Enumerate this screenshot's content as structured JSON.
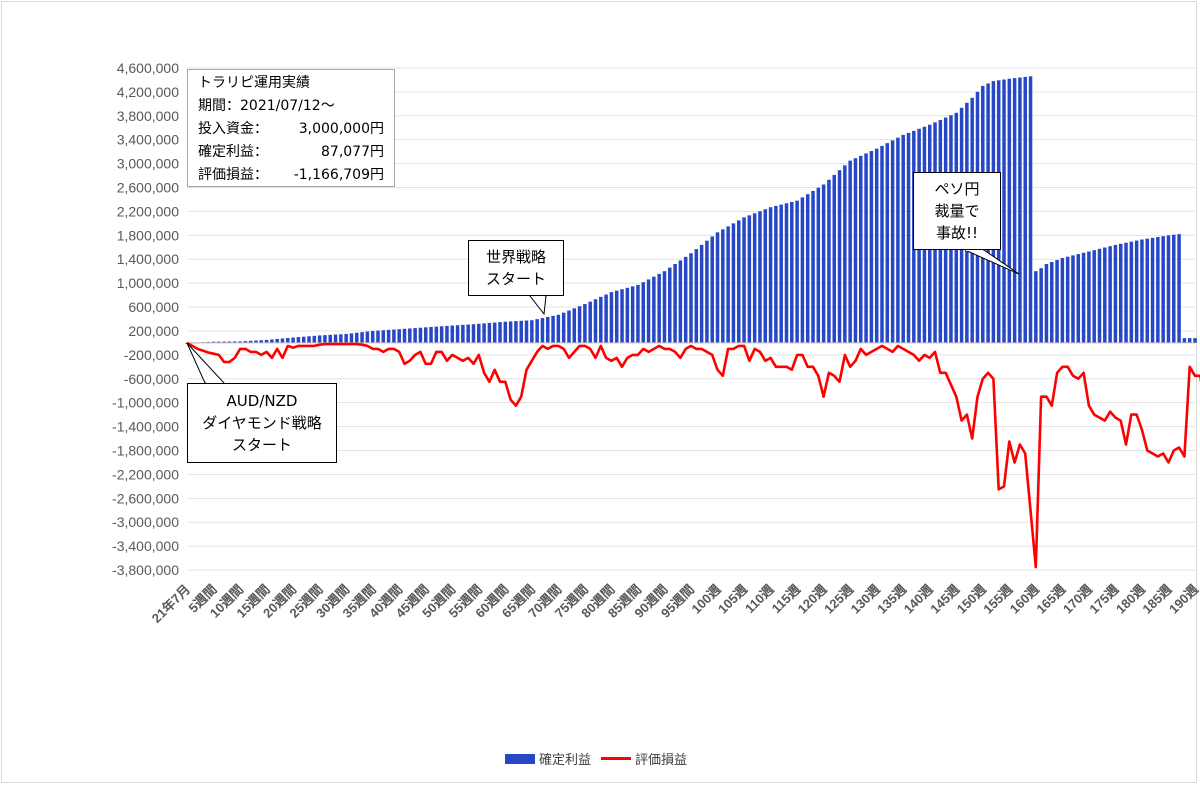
{
  "chart_data": {
    "type": "bar+line",
    "yticks": [
      "4,600,000",
      "4,200,000",
      "3,800,000",
      "3,400,000",
      "3,000,000",
      "2,600,000",
      "2,200,000",
      "1,800,000",
      "1,400,000",
      "1,000,000",
      "600,000",
      "200,000",
      "-200,000",
      "-600,000",
      "-1,000,000",
      "-1,400,000",
      "-1,800,000",
      "-2,200,000",
      "-2,600,000",
      "-3,000,000",
      "-3,400,000",
      "-3,800,000"
    ],
    "ylim": [
      -4000000,
      4800000
    ],
    "xticks": [
      "21年7月",
      "5週間",
      "10週間",
      "15週間",
      "20週間",
      "25週間",
      "30週間",
      "35週間",
      "40週間",
      "45週間",
      "50週間",
      "55週間",
      "60週間",
      "65週間",
      "70週間",
      "75週間",
      "80週間",
      "85週間",
      "90週間",
      "95週間",
      "100週",
      "105週",
      "110週",
      "115週",
      "120週",
      "125週",
      "130週",
      "135週",
      "140週",
      "145週",
      "150週",
      "155週",
      "160週",
      "165週",
      "170週",
      "175週",
      "180週",
      "185週",
      "190週"
    ],
    "num_weeks": 191,
    "series": [
      {
        "name": "確定利益",
        "type": "bar",
        "color": "#2747c6",
        "keypoints": [
          [
            0,
            0
          ],
          [
            5,
            20000
          ],
          [
            10,
            25000
          ],
          [
            15,
            50000
          ],
          [
            20,
            90000
          ],
          [
            25,
            125000
          ],
          [
            30,
            150000
          ],
          [
            35,
            200000
          ],
          [
            40,
            230000
          ],
          [
            45,
            260000
          ],
          [
            50,
            290000
          ],
          [
            55,
            320000
          ],
          [
            60,
            355000
          ],
          [
            65,
            380000
          ],
          [
            70,
            470000
          ],
          [
            75,
            650000
          ],
          [
            80,
            850000
          ],
          [
            85,
            970000
          ],
          [
            90,
            1200000
          ],
          [
            95,
            1500000
          ],
          [
            100,
            1850000
          ],
          [
            105,
            2100000
          ],
          [
            110,
            2270000
          ],
          [
            115,
            2380000
          ],
          [
            120,
            2650000
          ],
          [
            125,
            3050000
          ],
          [
            130,
            3250000
          ],
          [
            135,
            3480000
          ],
          [
            140,
            3650000
          ],
          [
            145,
            3850000
          ],
          [
            148,
            4100000
          ],
          [
            150,
            4300000
          ],
          [
            152,
            4380000
          ],
          [
            155,
            4420000
          ],
          [
            158,
            4450000
          ],
          [
            159,
            4460000
          ],
          [
            160,
            1200000
          ],
          [
            161,
            1250000
          ],
          [
            162,
            1320000
          ],
          [
            165,
            1420000
          ],
          [
            170,
            1530000
          ],
          [
            175,
            1640000
          ],
          [
            180,
            1730000
          ],
          [
            185,
            1800000
          ],
          [
            187,
            1820000
          ],
          [
            188,
            80000
          ],
          [
            190,
            80000
          ]
        ]
      },
      {
        "name": "評価損益",
        "type": "line",
        "color": "#ff0000",
        "values": [
          0,
          -50,
          -100,
          -130,
          -160,
          -180,
          -200,
          -320,
          -320,
          -250,
          -100,
          -100,
          -150,
          -150,
          -200,
          -150,
          -250,
          -100,
          -250,
          -50,
          -80,
          -50,
          -50,
          -50,
          -50,
          -30,
          -20,
          -20,
          -20,
          -20,
          -20,
          -20,
          -20,
          -30,
          -50,
          -100,
          -100,
          -150,
          -100,
          -100,
          -150,
          -350,
          -300,
          -200,
          -150,
          -350,
          -350,
          -150,
          -150,
          -300,
          -200,
          -250,
          -300,
          -250,
          -350,
          -200,
          -500,
          -650,
          -450,
          -650,
          -650,
          -950,
          -1050,
          -900,
          -450,
          -300,
          -150,
          -50,
          -100,
          -50,
          -50,
          -100,
          -250,
          -150,
          -50,
          -50,
          -100,
          -250,
          -50,
          -250,
          -300,
          -250,
          -400,
          -250,
          -200,
          -200,
          -100,
          -150,
          -100,
          -50,
          -100,
          -100,
          -150,
          -250,
          -100,
          -50,
          -100,
          -100,
          -150,
          -200,
          -450,
          -550,
          -100,
          -100,
          -50,
          -50,
          -300,
          -100,
          -150,
          -300,
          -250,
          -400,
          -400,
          -400,
          -450,
          -200,
          -200,
          -400,
          -400,
          -550,
          -900,
          -500,
          -550,
          -650,
          -200,
          -400,
          -300,
          -100,
          -200,
          -150,
          -100,
          -50,
          -100,
          -150,
          -50,
          -100,
          -150,
          -200,
          -300,
          -200,
          -250,
          -150,
          -500,
          -500,
          -700,
          -900,
          -1300,
          -1200,
          -1600,
          -900,
          -600,
          -500,
          -600,
          -2450,
          -2400,
          -1650,
          -2000,
          -1700,
          -1850,
          -2800,
          -3750,
          -900,
          -900,
          -1050,
          -500,
          -400,
          -400,
          -550,
          -600,
          -500,
          -1050,
          -1200,
          -1250,
          -1300,
          -1150,
          -1250,
          -1300,
          -1700,
          -1200,
          -1200,
          -1450,
          -1800,
          -1850,
          -1900,
          -1850,
          -2000,
          -1800,
          -1750,
          -1900,
          -400,
          -550,
          -550,
          -1150
        ]
      }
    ],
    "legend": [
      "確定利益",
      "評価損益"
    ],
    "legend_position": "bottom"
  },
  "info_box": {
    "title": "トラリピ運用実績",
    "period": "期間：2021/07/12～",
    "rows": [
      {
        "label": "投入資金：",
        "value": "3,000,000円"
      },
      {
        "label": "確定利益：",
        "value": "87,077円"
      },
      {
        "label": "評価損益：",
        "value": "-1,166,709円"
      }
    ]
  },
  "callouts": {
    "audnzd": [
      "AUD/NZD",
      "ダイヤモンド戦略",
      "スタート"
    ],
    "world": [
      "世界戦略",
      "スタート"
    ],
    "peso": [
      "ペソ円",
      "裁量で",
      "事故!!"
    ]
  },
  "legend_labels": {
    "bar": "確定利益",
    "line": "評価損益"
  }
}
